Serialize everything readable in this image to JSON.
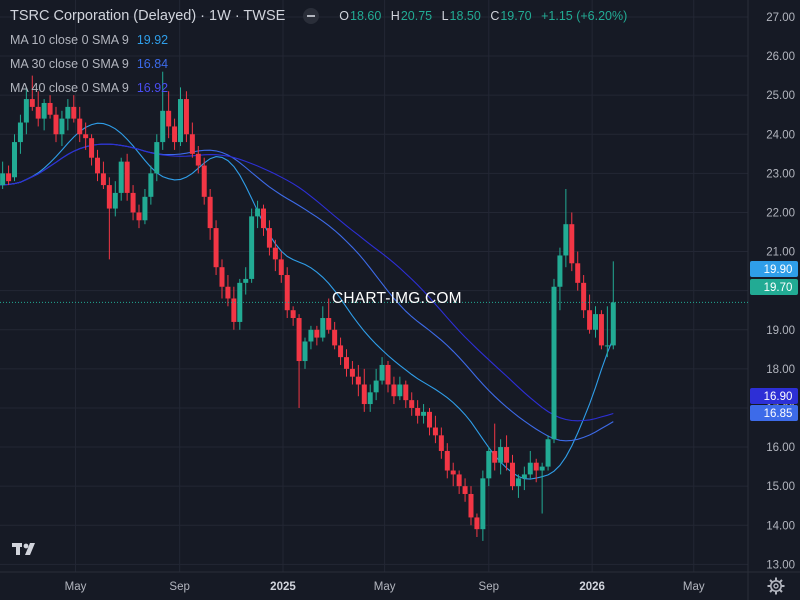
{
  "header": {
    "symbol": "TSRC Corporation (Delayed) · 1W · TWSE",
    "open_label": "O",
    "open": "18.60",
    "high_label": "H",
    "high": "20.75",
    "low_label": "L",
    "low": "18.50",
    "close_label": "C",
    "close": "19.70",
    "change": "+1.15 (+6.20%)"
  },
  "ma_legend": [
    {
      "label": "MA 10 close 0 SMA 9",
      "value": "19.92",
      "color": "#2f9ee9"
    },
    {
      "label": "MA 30 close 0 SMA 9",
      "value": "16.84",
      "color": "#3d6be9"
    },
    {
      "label": "MA 40 close 0 SMA 9",
      "value": "16.92",
      "color": "#2d2fd6"
    }
  ],
  "watermark": "CHART-IMG.COM",
  "icons": {
    "logo": "tradingview-logo-icon",
    "settings": "gear-icon"
  },
  "colors": {
    "up": "#22ab94",
    "down": "#f23645",
    "background": "#161a25",
    "grid": "#232734"
  },
  "chart_data": {
    "type": "candlestick",
    "title": "TSRC Corporation (Delayed) · 1W · TWSE",
    "ylim": [
      12.6,
      27.0
    ],
    "y_ticks": [
      "13.00",
      "14.00",
      "15.00",
      "16.00",
      "17.00",
      "18.00",
      "19.00",
      "20.00",
      "21.00",
      "22.00",
      "23.00",
      "24.00",
      "25.00",
      "26.00",
      "27.00"
    ],
    "x_ticks": [
      "May",
      "Sep",
      "2025",
      "May",
      "Sep",
      "2026",
      "May"
    ],
    "grid": true,
    "price_labels": [
      {
        "text": "19.90",
        "value": 19.9,
        "color": "#2f9ee9"
      },
      {
        "text": "19.70",
        "value": 19.7,
        "color": "#22ab94"
      },
      {
        "text": "16.90",
        "value": 16.9,
        "color": "#2d2fd6"
      },
      {
        "text": "16.85",
        "value": 16.85,
        "color": "#3d6be9"
      }
    ],
    "candles": [
      {
        "date": "2024-01-01",
        "o": 22.3,
        "h": 22.8,
        "l": 22.1,
        "c": 22.6
      },
      {
        "date": "2024-01-08",
        "o": 22.6,
        "h": 23.1,
        "l": 22.4,
        "c": 22.9
      },
      {
        "date": "2024-01-15",
        "o": 22.9,
        "h": 23.2,
        "l": 22.6,
        "c": 22.8
      },
      {
        "date": "2024-01-22",
        "o": 22.8,
        "h": 23.0,
        "l": 22.3,
        "c": 22.5
      },
      {
        "date": "2024-01-29",
        "o": 22.5,
        "h": 22.9,
        "l": 22.4,
        "c": 22.7
      },
      {
        "date": "2024-02-05",
        "o": 22.7,
        "h": 23.3,
        "l": 22.6,
        "c": 23.0
      },
      {
        "date": "2024-02-12",
        "o": 23.0,
        "h": 23.2,
        "l": 22.7,
        "c": 22.8
      },
      {
        "date": "2024-02-19",
        "o": 22.9,
        "h": 24.0,
        "l": 22.8,
        "c": 23.8
      },
      {
        "date": "2024-02-26",
        "o": 23.8,
        "h": 24.5,
        "l": 23.5,
        "c": 24.3
      },
      {
        "date": "2024-03-04",
        "o": 24.3,
        "h": 25.2,
        "l": 24.0,
        "c": 24.9
      },
      {
        "date": "2024-03-11",
        "o": 24.9,
        "h": 25.5,
        "l": 24.6,
        "c": 24.7
      },
      {
        "date": "2024-03-18",
        "o": 24.7,
        "h": 25.1,
        "l": 24.2,
        "c": 24.4
      },
      {
        "date": "2024-03-25",
        "o": 24.4,
        "h": 24.9,
        "l": 24.1,
        "c": 24.8
      },
      {
        "date": "2024-04-01",
        "o": 24.8,
        "h": 25.0,
        "l": 24.4,
        "c": 24.5
      },
      {
        "date": "2024-04-08",
        "o": 24.5,
        "h": 24.7,
        "l": 23.8,
        "c": 24.0
      },
      {
        "date": "2024-04-15",
        "o": 24.0,
        "h": 24.6,
        "l": 23.7,
        "c": 24.4
      },
      {
        "date": "2024-04-22",
        "o": 24.4,
        "h": 24.9,
        "l": 24.1,
        "c": 24.7
      },
      {
        "date": "2024-04-29",
        "o": 24.7,
        "h": 25.0,
        "l": 24.3,
        "c": 24.4
      },
      {
        "date": "2024-05-06",
        "o": 24.4,
        "h": 24.7,
        "l": 23.8,
        "c": 24.0
      },
      {
        "date": "2024-05-13",
        "o": 24.0,
        "h": 24.3,
        "l": 23.6,
        "c": 23.9
      },
      {
        "date": "2024-05-20",
        "o": 23.9,
        "h": 24.0,
        "l": 23.2,
        "c": 23.4
      },
      {
        "date": "2024-05-27",
        "o": 23.4,
        "h": 23.6,
        "l": 22.8,
        "c": 23.0
      },
      {
        "date": "2024-06-03",
        "o": 23.0,
        "h": 23.3,
        "l": 22.6,
        "c": 22.7
      },
      {
        "date": "2024-06-10",
        "o": 22.7,
        "h": 22.9,
        "l": 20.8,
        "c": 22.1
      },
      {
        "date": "2024-06-17",
        "o": 22.1,
        "h": 22.8,
        "l": 21.9,
        "c": 22.5
      },
      {
        "date": "2024-06-24",
        "o": 22.5,
        "h": 23.4,
        "l": 22.3,
        "c": 23.3
      },
      {
        "date": "2024-07-01",
        "o": 23.3,
        "h": 23.5,
        "l": 22.3,
        "c": 22.5
      },
      {
        "date": "2024-07-08",
        "o": 22.5,
        "h": 22.7,
        "l": 21.8,
        "c": 22.0
      },
      {
        "date": "2024-07-15",
        "o": 22.0,
        "h": 22.2,
        "l": 21.6,
        "c": 21.8
      },
      {
        "date": "2024-07-22",
        "o": 21.8,
        "h": 22.6,
        "l": 21.7,
        "c": 22.4
      },
      {
        "date": "2024-07-29",
        "o": 22.4,
        "h": 23.2,
        "l": 22.2,
        "c": 23.0
      },
      {
        "date": "2024-08-05",
        "o": 23.0,
        "h": 24.0,
        "l": 22.8,
        "c": 23.8
      },
      {
        "date": "2024-08-12",
        "o": 23.8,
        "h": 25.6,
        "l": 23.6,
        "c": 24.6
      },
      {
        "date": "2024-08-19",
        "o": 24.6,
        "h": 25.1,
        "l": 23.9,
        "c": 24.2
      },
      {
        "date": "2024-08-26",
        "o": 24.2,
        "h": 24.4,
        "l": 23.6,
        "c": 23.8
      },
      {
        "date": "2024-09-02",
        "o": 23.8,
        "h": 25.2,
        "l": 23.7,
        "c": 24.9
      },
      {
        "date": "2024-09-09",
        "o": 24.9,
        "h": 25.1,
        "l": 23.8,
        "c": 24.0
      },
      {
        "date": "2024-09-16",
        "o": 24.0,
        "h": 24.3,
        "l": 23.4,
        "c": 23.5
      },
      {
        "date": "2024-09-23",
        "o": 23.5,
        "h": 23.7,
        "l": 23.0,
        "c": 23.2
      },
      {
        "date": "2024-09-30",
        "o": 23.2,
        "h": 23.4,
        "l": 22.2,
        "c": 22.4
      },
      {
        "date": "2024-10-07",
        "o": 22.4,
        "h": 22.6,
        "l": 21.3,
        "c": 21.6
      },
      {
        "date": "2024-10-14",
        "o": 21.6,
        "h": 21.8,
        "l": 20.4,
        "c": 20.6
      },
      {
        "date": "2024-10-21",
        "o": 20.6,
        "h": 20.8,
        "l": 19.8,
        "c": 20.1
      },
      {
        "date": "2024-10-28",
        "o": 20.1,
        "h": 20.4,
        "l": 19.6,
        "c": 19.8
      },
      {
        "date": "2024-11-04",
        "o": 19.8,
        "h": 20.1,
        "l": 19.0,
        "c": 19.2
      },
      {
        "date": "2024-11-11",
        "o": 19.2,
        "h": 20.3,
        "l": 19.0,
        "c": 20.2
      },
      {
        "date": "2024-11-18",
        "o": 20.2,
        "h": 20.6,
        "l": 19.9,
        "c": 20.3
      },
      {
        "date": "2024-11-25",
        "o": 20.3,
        "h": 22.1,
        "l": 20.2,
        "c": 21.9
      },
      {
        "date": "2024-12-02",
        "o": 21.9,
        "h": 22.3,
        "l": 21.6,
        "c": 22.1
      },
      {
        "date": "2024-12-09",
        "o": 22.1,
        "h": 22.2,
        "l": 21.4,
        "c": 21.6
      },
      {
        "date": "2024-12-16",
        "o": 21.6,
        "h": 21.8,
        "l": 20.9,
        "c": 21.1
      },
      {
        "date": "2024-12-23",
        "o": 21.1,
        "h": 21.3,
        "l": 20.5,
        "c": 20.8
      },
      {
        "date": "2024-12-30",
        "o": 20.8,
        "h": 21.0,
        "l": 20.2,
        "c": 20.4
      },
      {
        "date": "2025-01-06",
        "o": 20.4,
        "h": 20.6,
        "l": 19.3,
        "c": 19.5
      },
      {
        "date": "2025-01-13",
        "o": 19.5,
        "h": 19.6,
        "l": 19.1,
        "c": 19.3
      },
      {
        "date": "2025-01-20",
        "o": 19.3,
        "h": 19.4,
        "l": 17.0,
        "c": 18.2
      },
      {
        "date": "2025-01-27",
        "o": 18.2,
        "h": 18.8,
        "l": 18.0,
        "c": 18.7
      },
      {
        "date": "2025-02-03",
        "o": 18.7,
        "h": 19.1,
        "l": 18.5,
        "c": 19.0
      },
      {
        "date": "2025-02-10",
        "o": 19.0,
        "h": 19.1,
        "l": 18.6,
        "c": 18.8
      },
      {
        "date": "2025-02-17",
        "o": 18.8,
        "h": 19.6,
        "l": 18.7,
        "c": 19.3
      },
      {
        "date": "2025-02-24",
        "o": 19.3,
        "h": 19.8,
        "l": 18.9,
        "c": 19.0
      },
      {
        "date": "2025-03-03",
        "o": 19.0,
        "h": 19.2,
        "l": 18.5,
        "c": 18.6
      },
      {
        "date": "2025-03-10",
        "o": 18.6,
        "h": 18.8,
        "l": 18.1,
        "c": 18.3
      },
      {
        "date": "2025-03-17",
        "o": 18.3,
        "h": 18.5,
        "l": 17.8,
        "c": 18.0
      },
      {
        "date": "2025-03-24",
        "o": 18.0,
        "h": 18.2,
        "l": 17.6,
        "c": 17.8
      },
      {
        "date": "2025-03-31",
        "o": 17.8,
        "h": 18.1,
        "l": 17.3,
        "c": 17.6
      },
      {
        "date": "2025-04-07",
        "o": 17.6,
        "h": 18.0,
        "l": 16.9,
        "c": 17.1
      },
      {
        "date": "2025-04-14",
        "o": 17.1,
        "h": 17.6,
        "l": 16.9,
        "c": 17.4
      },
      {
        "date": "2025-04-21",
        "o": 17.4,
        "h": 18.0,
        "l": 17.2,
        "c": 17.7
      },
      {
        "date": "2025-04-28",
        "o": 17.7,
        "h": 18.3,
        "l": 17.6,
        "c": 18.1
      },
      {
        "date": "2025-05-05",
        "o": 18.1,
        "h": 18.2,
        "l": 17.4,
        "c": 17.6
      },
      {
        "date": "2025-05-12",
        "o": 17.6,
        "h": 17.8,
        "l": 17.1,
        "c": 17.3
      },
      {
        "date": "2025-05-19",
        "o": 17.3,
        "h": 17.8,
        "l": 17.2,
        "c": 17.6
      },
      {
        "date": "2025-05-26",
        "o": 17.6,
        "h": 17.7,
        "l": 17.0,
        "c": 17.2
      },
      {
        "date": "2025-06-02",
        "o": 17.2,
        "h": 17.4,
        "l": 16.8,
        "c": 17.0
      },
      {
        "date": "2025-06-09",
        "o": 17.0,
        "h": 17.2,
        "l": 16.6,
        "c": 16.8
      },
      {
        "date": "2025-06-16",
        "o": 16.8,
        "h": 17.1,
        "l": 16.6,
        "c": 16.9
      },
      {
        "date": "2025-06-23",
        "o": 16.9,
        "h": 17.0,
        "l": 16.3,
        "c": 16.5
      },
      {
        "date": "2025-06-30",
        "o": 16.5,
        "h": 16.8,
        "l": 16.1,
        "c": 16.3
      },
      {
        "date": "2025-07-07",
        "o": 16.3,
        "h": 16.5,
        "l": 15.7,
        "c": 15.9
      },
      {
        "date": "2025-07-14",
        "o": 15.9,
        "h": 16.1,
        "l": 15.2,
        "c": 15.4
      },
      {
        "date": "2025-07-21",
        "o": 15.4,
        "h": 15.6,
        "l": 15.0,
        "c": 15.3
      },
      {
        "date": "2025-07-28",
        "o": 15.3,
        "h": 15.4,
        "l": 14.8,
        "c": 15.0
      },
      {
        "date": "2025-08-04",
        "o": 15.0,
        "h": 15.2,
        "l": 14.6,
        "c": 14.8
      },
      {
        "date": "2025-08-11",
        "o": 14.8,
        "h": 15.0,
        "l": 14.0,
        "c": 14.2
      },
      {
        "date": "2025-08-18",
        "o": 14.2,
        "h": 14.3,
        "l": 13.7,
        "c": 13.9
      },
      {
        "date": "2025-08-25",
        "o": 13.9,
        "h": 15.4,
        "l": 13.6,
        "c": 15.2
      },
      {
        "date": "2025-09-01",
        "o": 15.2,
        "h": 16.0,
        "l": 15.0,
        "c": 15.9
      },
      {
        "date": "2025-09-08",
        "o": 15.9,
        "h": 16.6,
        "l": 15.4,
        "c": 15.6
      },
      {
        "date": "2025-09-15",
        "o": 15.6,
        "h": 16.2,
        "l": 15.3,
        "c": 16.0
      },
      {
        "date": "2025-09-22",
        "o": 16.0,
        "h": 16.3,
        "l": 15.4,
        "c": 15.6
      },
      {
        "date": "2025-09-29",
        "o": 15.6,
        "h": 15.8,
        "l": 14.9,
        "c": 15.0
      },
      {
        "date": "2025-10-06",
        "o": 15.0,
        "h": 15.3,
        "l": 14.7,
        "c": 15.2
      },
      {
        "date": "2025-10-13",
        "o": 15.2,
        "h": 15.5,
        "l": 14.9,
        "c": 15.3
      },
      {
        "date": "2025-10-20",
        "o": 15.3,
        "h": 15.9,
        "l": 15.2,
        "c": 15.6
      },
      {
        "date": "2025-10-27",
        "o": 15.6,
        "h": 15.7,
        "l": 15.1,
        "c": 15.4
      },
      {
        "date": "2025-11-03",
        "o": 15.4,
        "h": 15.6,
        "l": 14.3,
        "c": 15.5
      },
      {
        "date": "2025-11-10",
        "o": 15.5,
        "h": 16.3,
        "l": 15.4,
        "c": 16.2
      },
      {
        "date": "2025-11-17",
        "o": 16.2,
        "h": 20.3,
        "l": 16.1,
        "c": 20.1
      },
      {
        "date": "2025-11-24",
        "o": 20.1,
        "h": 21.1,
        "l": 19.5,
        "c": 20.9
      },
      {
        "date": "2025-12-01",
        "o": 20.9,
        "h": 22.6,
        "l": 20.6,
        "c": 21.7
      },
      {
        "date": "2025-12-08",
        "o": 21.7,
        "h": 22.0,
        "l": 20.5,
        "c": 20.7
      },
      {
        "date": "2025-12-15",
        "o": 20.7,
        "h": 21.0,
        "l": 20.0,
        "c": 20.2
      },
      {
        "date": "2025-12-22",
        "o": 20.2,
        "h": 20.4,
        "l": 19.3,
        "c": 19.5
      },
      {
        "date": "2025-12-29",
        "o": 19.5,
        "h": 19.9,
        "l": 18.9,
        "c": 19.0
      },
      {
        "date": "2026-01-05",
        "o": 19.0,
        "h": 19.6,
        "l": 18.8,
        "c": 19.4
      },
      {
        "date": "2026-01-12",
        "o": 19.4,
        "h": 19.5,
        "l": 18.5,
        "c": 18.6
      },
      {
        "date": "2026-01-19",
        "o": 18.6,
        "h": 19.6,
        "l": 18.3,
        "c": 18.6
      },
      {
        "date": "2026-01-26",
        "o": 18.6,
        "h": 20.75,
        "l": 18.5,
        "c": 19.7
      }
    ],
    "series": [
      {
        "name": "MA 10 close 0 SMA 9",
        "color": "#2f9ee9",
        "last": 19.92
      },
      {
        "name": "MA 30 close 0 SMA 9",
        "color": "#3d6be9",
        "last": 16.84
      },
      {
        "name": "MA 40 close 0 SMA 9",
        "color": "#2d2fd6",
        "last": 16.92
      }
    ]
  }
}
